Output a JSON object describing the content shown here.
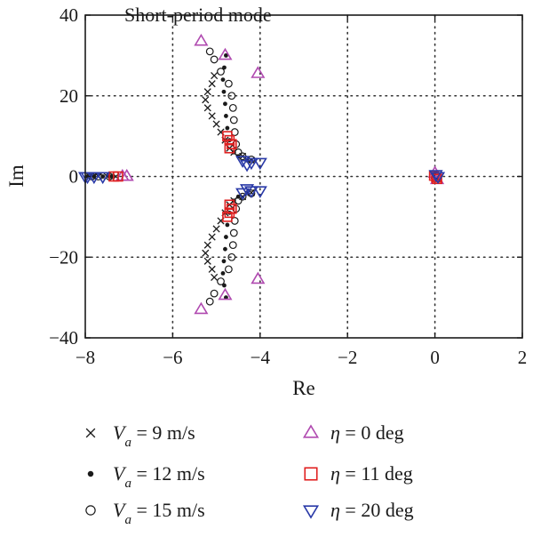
{
  "chart_data": {
    "type": "scatter",
    "title": "",
    "annotation": "Short-period mode",
    "xlabel": "Re",
    "ylabel": "Im",
    "xlim": [
      -8,
      2
    ],
    "ylim": [
      -40,
      40
    ],
    "xticks": [
      -8,
      -6,
      -4,
      -2,
      0,
      2
    ],
    "yticks": [
      -40,
      -20,
      0,
      20,
      40
    ],
    "xtick_labels": [
      "−8",
      "−6",
      "−4",
      "−2",
      "0",
      "2"
    ],
    "ytick_labels": [
      "−40",
      "−20",
      "0",
      "20",
      "40"
    ],
    "grid": true,
    "grid_style": "dotted",
    "legend_placement": "below",
    "legend": [
      {
        "marker": "x",
        "var": "V",
        "sub": "a",
        "text": " = 9 m/s"
      },
      {
        "marker": "dot",
        "var": "V",
        "sub": "a",
        "text": " = 12 m/s"
      },
      {
        "marker": "circle",
        "var": "V",
        "sub": "a",
        "text": " = 15 m/s"
      },
      {
        "marker": "triangle-up",
        "var": "η",
        "sub": "",
        "text": " = 0 deg",
        "color": "#b04ab0"
      },
      {
        "marker": "square",
        "var": "η",
        "sub": "",
        "text": " = 11 deg",
        "color": "#e02020"
      },
      {
        "marker": "triangle-down",
        "var": "η",
        "sub": "",
        "text": " = 20 deg",
        "color": "#2a3aa8"
      }
    ],
    "colors": {
      "eta_0": "#b04ab0",
      "eta_11": "#e02020",
      "eta_20": "#2a3aa8",
      "speed_markers": "#1a1a1a",
      "grid": "#333333"
    },
    "series": [
      {
        "marker": "x",
        "points": [
          [
            -5.05,
            25
          ],
          [
            -5.1,
            23
          ],
          [
            -5.2,
            21
          ],
          [
            -5.25,
            19
          ],
          [
            -5.2,
            17
          ],
          [
            -5.1,
            15
          ],
          [
            -5.0,
            13
          ],
          [
            -4.9,
            11
          ],
          [
            -4.8,
            9
          ],
          [
            -4.7,
            7
          ],
          [
            -4.6,
            6
          ],
          [
            -4.4,
            5
          ],
          [
            -4.2,
            4
          ],
          [
            -5.05,
            -25
          ],
          [
            -5.1,
            -23
          ],
          [
            -5.2,
            -21
          ],
          [
            -5.25,
            -19
          ],
          [
            -5.2,
            -17
          ],
          [
            -5.1,
            -15
          ],
          [
            -5.0,
            -13
          ],
          [
            -4.9,
            -11
          ],
          [
            -4.8,
            -9
          ],
          [
            -4.7,
            -7
          ],
          [
            -4.6,
            -6
          ],
          [
            -4.4,
            -5
          ],
          [
            -4.2,
            -4
          ],
          [
            -7.3,
            0
          ],
          [
            -7.5,
            0
          ],
          [
            -7.7,
            0
          ],
          [
            -7.9,
            0
          ],
          [
            -0.02,
            0.3
          ],
          [
            0.05,
            -0.3
          ]
        ]
      },
      {
        "marker": "dot",
        "points": [
          [
            -4.78,
            30
          ],
          [
            -4.82,
            27
          ],
          [
            -4.85,
            24
          ],
          [
            -4.83,
            21
          ],
          [
            -4.8,
            18
          ],
          [
            -4.78,
            15
          ],
          [
            -4.75,
            12
          ],
          [
            -4.7,
            9
          ],
          [
            -4.6,
            6
          ],
          [
            -4.5,
            5
          ],
          [
            -4.3,
            4
          ],
          [
            -4.78,
            -30
          ],
          [
            -4.82,
            -27
          ],
          [
            -4.85,
            -24
          ],
          [
            -4.83,
            -21
          ],
          [
            -4.8,
            -18
          ],
          [
            -4.78,
            -15
          ],
          [
            -4.75,
            -12
          ],
          [
            -4.7,
            -9
          ],
          [
            -4.6,
            -6
          ],
          [
            -4.5,
            -5
          ],
          [
            -4.3,
            -4
          ],
          [
            -7.4,
            0
          ],
          [
            -7.6,
            0
          ],
          [
            -7.8,
            0
          ],
          [
            -7.95,
            0
          ],
          [
            0.0,
            0.5
          ],
          [
            0.05,
            -0.5
          ]
        ]
      },
      {
        "marker": "circle",
        "points": [
          [
            -5.15,
            31
          ],
          [
            -5.05,
            29
          ],
          [
            -4.9,
            26
          ],
          [
            -4.72,
            23
          ],
          [
            -4.65,
            20
          ],
          [
            -4.62,
            17
          ],
          [
            -4.6,
            14
          ],
          [
            -4.58,
            11
          ],
          [
            -4.55,
            8
          ],
          [
            -4.5,
            6
          ],
          [
            -4.4,
            5
          ],
          [
            -4.2,
            4.2
          ],
          [
            -5.15,
            -31
          ],
          [
            -5.05,
            -29
          ],
          [
            -4.9,
            -26
          ],
          [
            -4.72,
            -23
          ],
          [
            -4.65,
            -20
          ],
          [
            -4.62,
            -17
          ],
          [
            -4.6,
            -14
          ],
          [
            -4.58,
            -11
          ],
          [
            -4.55,
            -8
          ],
          [
            -4.5,
            -6
          ],
          [
            -4.4,
            -5
          ],
          [
            -4.2,
            -4.2
          ],
          [
            -7.45,
            0
          ],
          [
            -7.7,
            0
          ],
          [
            -7.85,
            0
          ],
          [
            0.02,
            0.4
          ],
          [
            0.07,
            -0.4
          ]
        ]
      },
      {
        "marker": "triangle-up",
        "color": "#b04ab0",
        "points": [
          [
            -5.35,
            33.5
          ],
          [
            -4.8,
            30
          ],
          [
            -4.05,
            25.5
          ],
          [
            -5.35,
            -33
          ],
          [
            -4.8,
            -29.5
          ],
          [
            -4.05,
            -25.5
          ],
          [
            -7.05,
            0
          ],
          [
            -7.15,
            0
          ],
          [
            0.0,
            0.8
          ],
          [
            0.05,
            -0.8
          ]
        ]
      },
      {
        "marker": "square",
        "color": "#e02020",
        "points": [
          [
            -4.75,
            10
          ],
          [
            -4.7,
            9
          ],
          [
            -4.65,
            8
          ],
          [
            -4.7,
            7
          ],
          [
            -4.75,
            -10
          ],
          [
            -4.7,
            -9
          ],
          [
            -4.65,
            -8
          ],
          [
            -4.7,
            -7
          ],
          [
            -7.25,
            0
          ],
          [
            -7.35,
            0
          ],
          [
            -0.02,
            0.2
          ],
          [
            0.03,
            -0.2
          ],
          [
            0.05,
            -0.6
          ]
        ]
      },
      {
        "marker": "triangle-down",
        "color": "#2a3aa8",
        "points": [
          [
            -4.4,
            4
          ],
          [
            -4.2,
            3.5
          ],
          [
            -4.0,
            3.5
          ],
          [
            -4.3,
            3
          ],
          [
            -4.4,
            -4
          ],
          [
            -4.2,
            -3.5
          ],
          [
            -4.0,
            -3.5
          ],
          [
            -4.3,
            -3
          ],
          [
            -7.6,
            0
          ],
          [
            -7.8,
            0
          ],
          [
            -7.95,
            0
          ],
          [
            -8.0,
            0
          ],
          [
            0.02,
            0.5
          ],
          [
            0.07,
            0
          ]
        ]
      }
    ]
  }
}
